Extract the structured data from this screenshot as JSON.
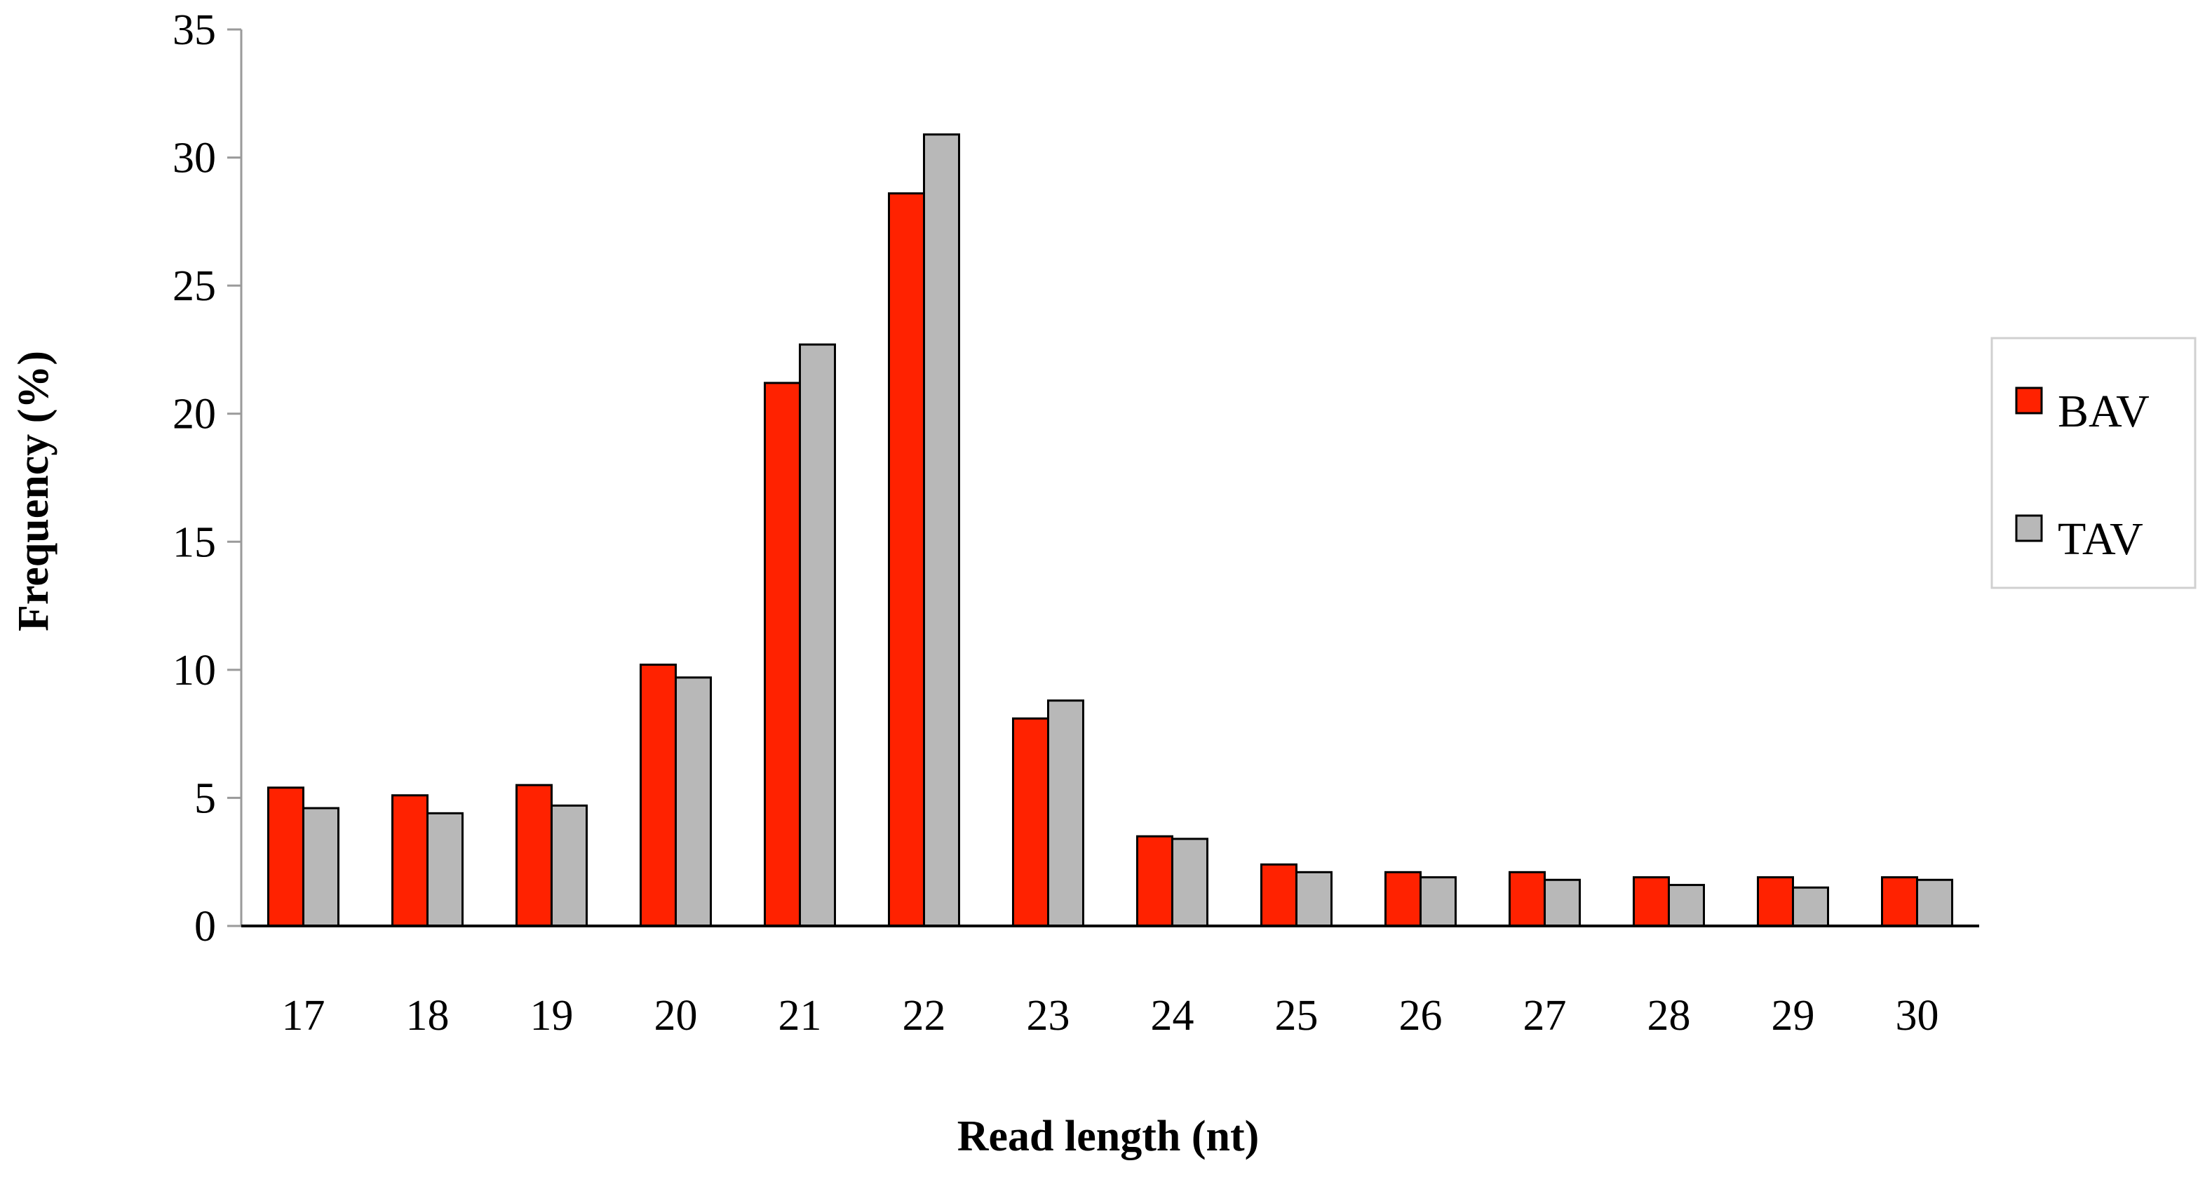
{
  "chart_data": {
    "type": "bar",
    "xlabel": "Read length (nt)",
    "ylabel": "Frequency (%)",
    "ylim": [
      0,
      35
    ],
    "yticks": [
      "0",
      "5",
      "10",
      "15",
      "20",
      "25",
      "30",
      "35"
    ],
    "categories": [
      "17",
      "18",
      "19",
      "20",
      "21",
      "22",
      "23",
      "24",
      "25",
      "26",
      "27",
      "28",
      "29",
      "30"
    ],
    "series": [
      {
        "name": "BAV",
        "color": "#ff2200",
        "values": [
          5.4,
          5.1,
          5.5,
          10.2,
          21.2,
          28.6,
          8.1,
          3.5,
          2.4,
          2.1,
          2.1,
          1.9,
          1.9,
          1.9
        ]
      },
      {
        "name": "TAV",
        "color": "#b8b8b8",
        "values": [
          4.6,
          4.4,
          4.7,
          9.7,
          22.7,
          30.9,
          8.8,
          3.4,
          2.1,
          1.9,
          1.8,
          1.6,
          1.5,
          1.8
        ]
      }
    ],
    "grid": false,
    "legend_position": "right"
  }
}
